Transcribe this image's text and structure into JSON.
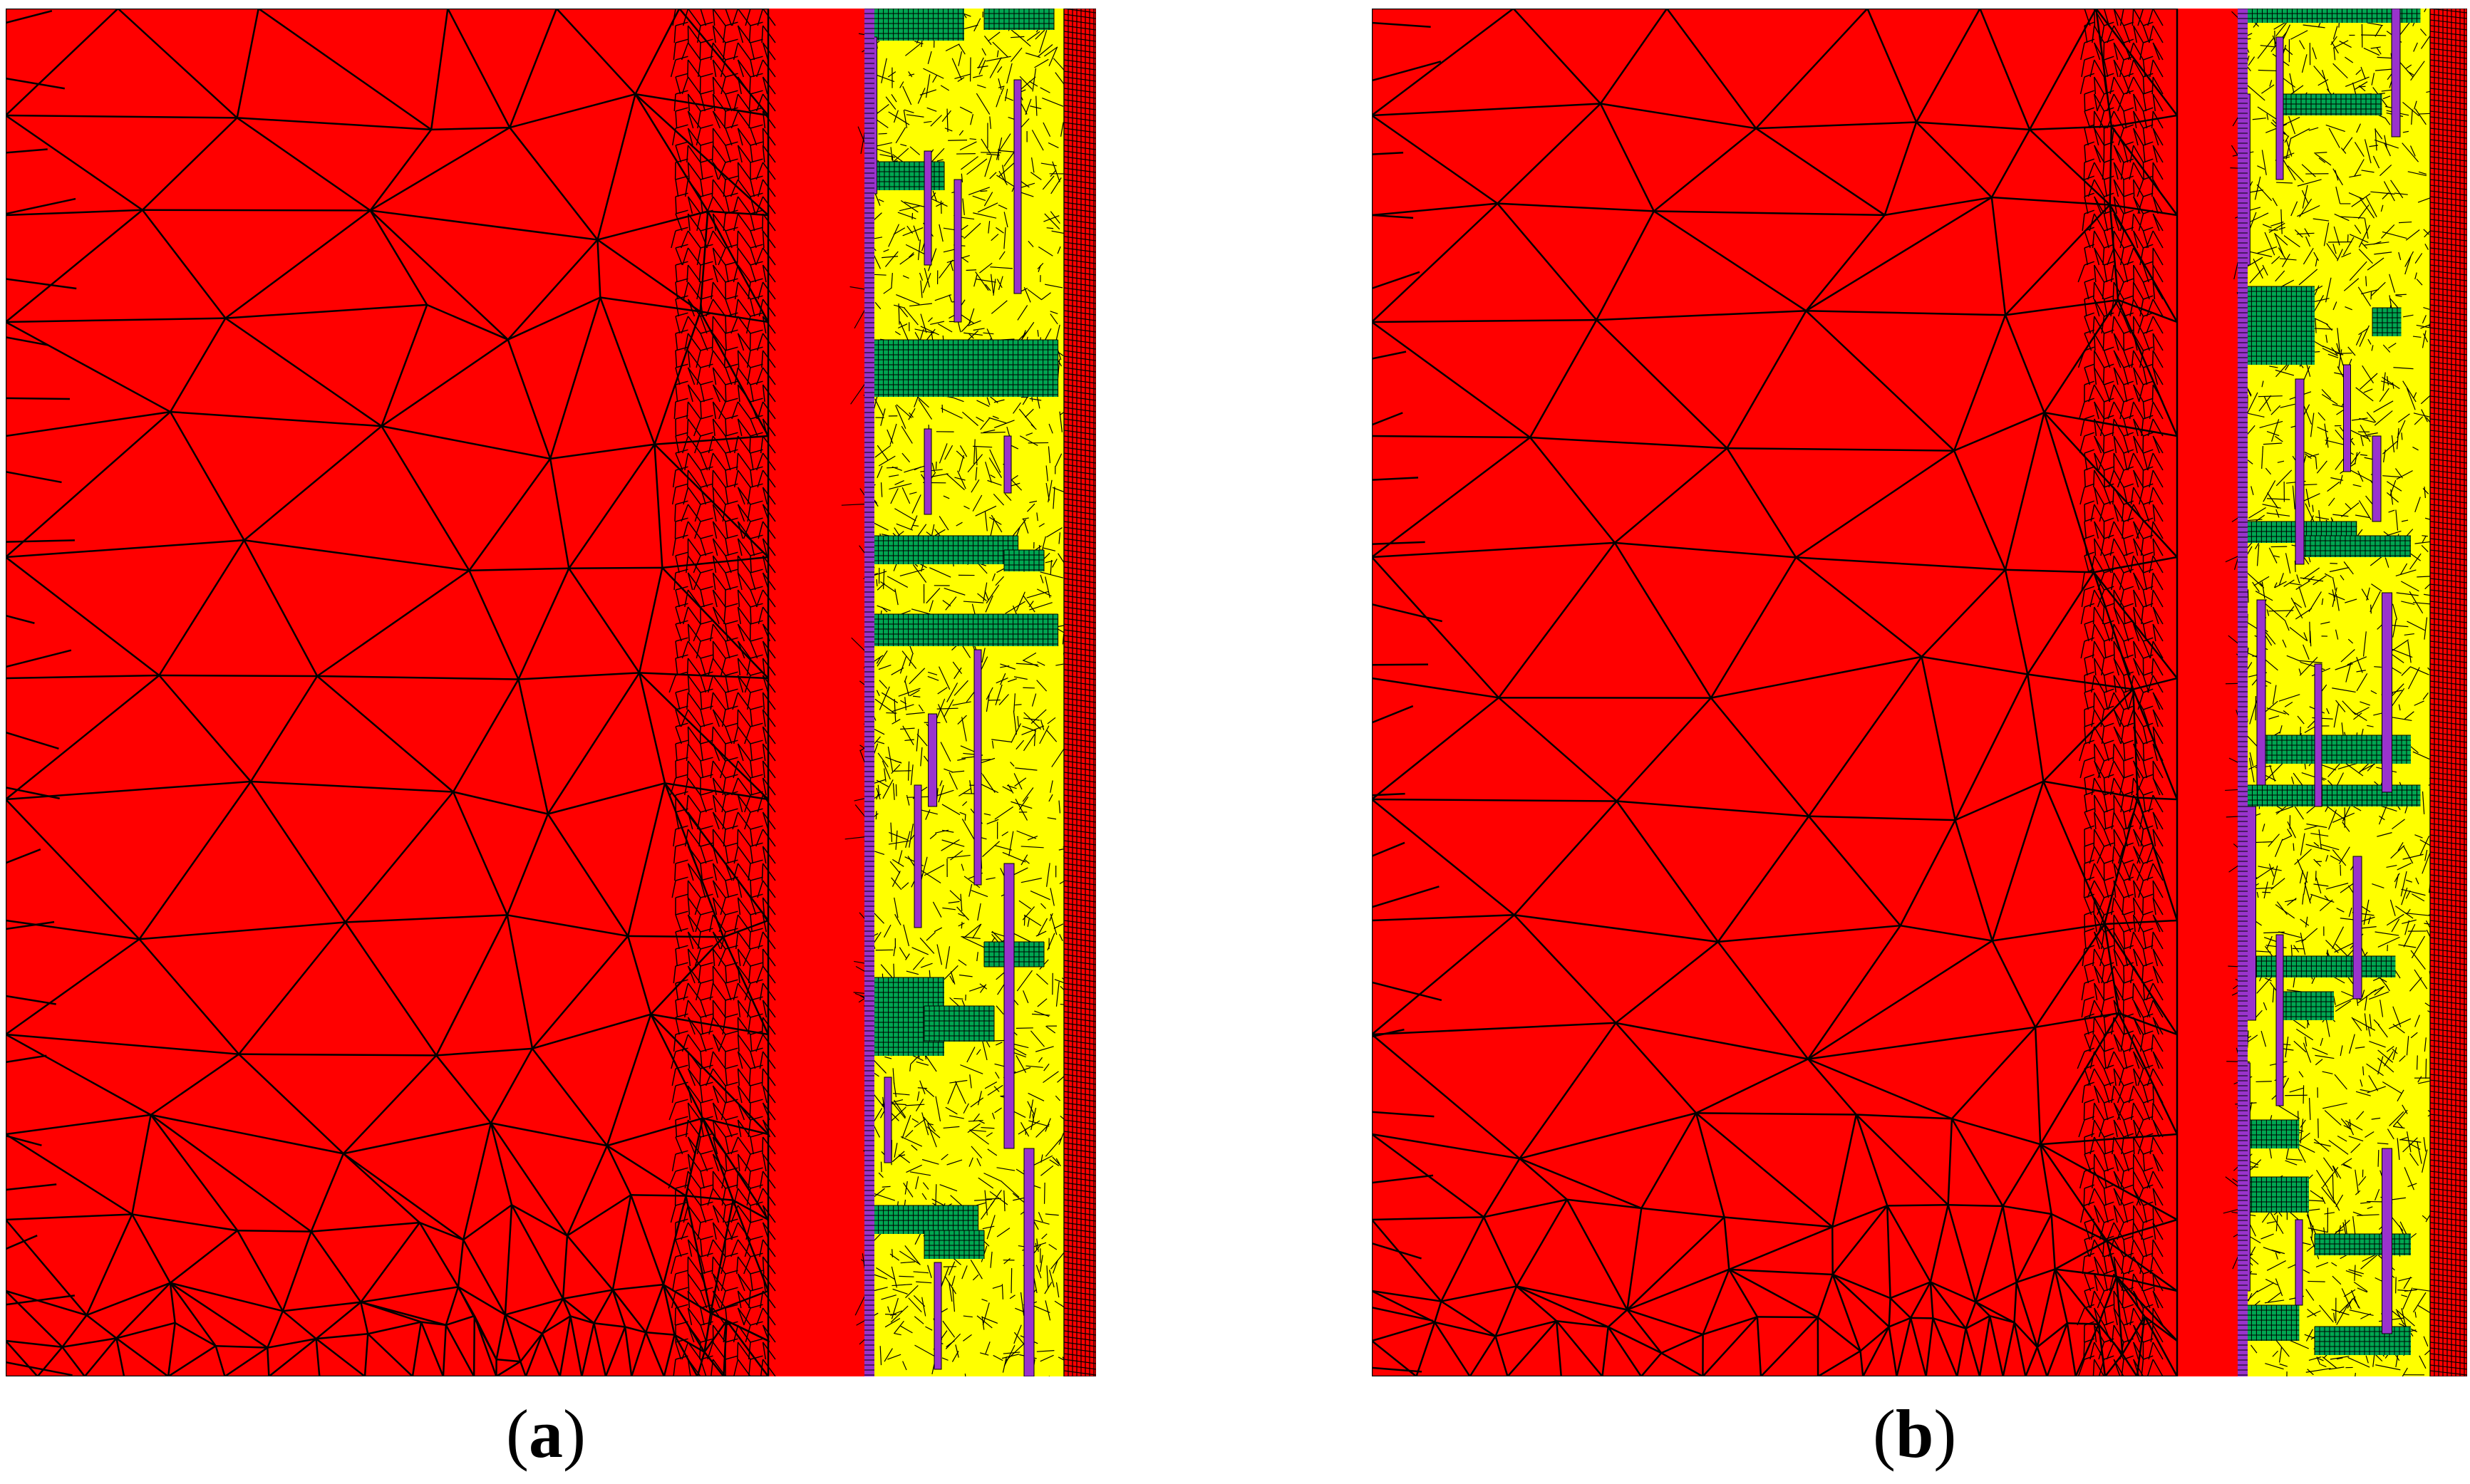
{
  "figure": {
    "panels": [
      {
        "id": "a",
        "label": "a",
        "colors": {
          "background_region": "#ff0000",
          "boundary_fill": "#ffff00",
          "grid_blocks": "#00a651",
          "thin_strips": "#9933cc",
          "mesh_lines": "#000000"
        }
      },
      {
        "id": "b",
        "label": "b",
        "colors": {
          "background_region": "#ff0000",
          "boundary_fill": "#ffff00",
          "grid_blocks": "#00a651",
          "thin_strips": "#9933cc",
          "mesh_lines": "#000000"
        }
      }
    ]
  }
}
